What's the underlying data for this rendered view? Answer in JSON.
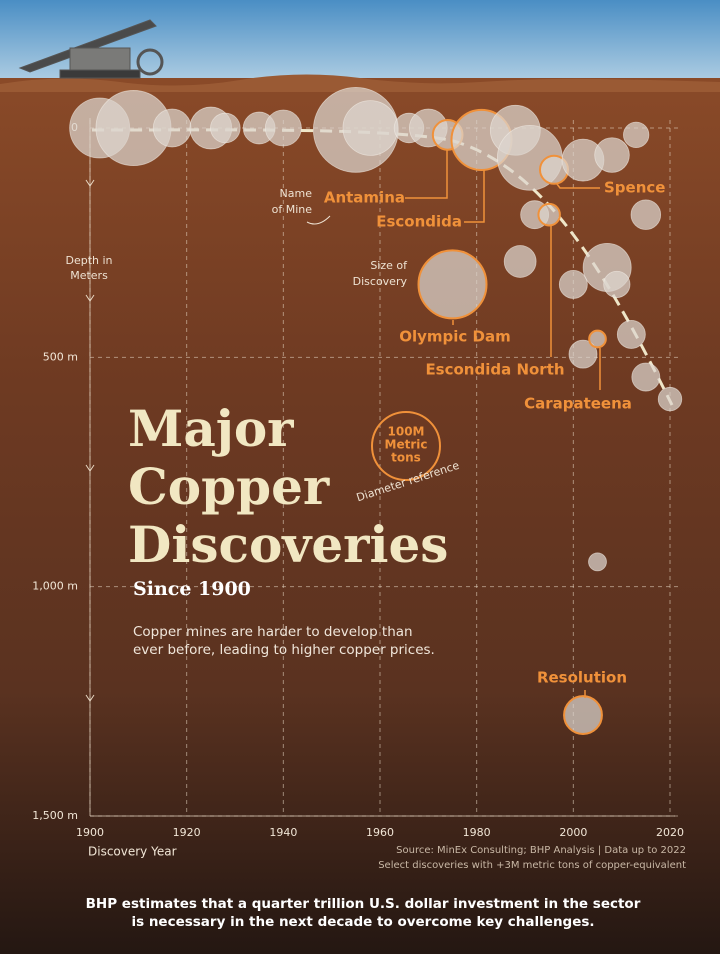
{
  "chart_data": {
    "type": "bubble",
    "title": [
      "Major",
      "Copper",
      "Discoveries"
    ],
    "subtitle": "Since 1900",
    "description": [
      "Copper mines are harder to develop than",
      "ever before, leading to higher copper prices."
    ],
    "x_label": "Discovery Year",
    "y_label": [
      "Depth in",
      "Meters"
    ],
    "annotations": {
      "name": [
        "Name",
        "of Mine"
      ],
      "size": [
        "Size of",
        "Discovery"
      ]
    },
    "reference": {
      "value": 100,
      "label": [
        "100M",
        "Metric",
        "tons"
      ],
      "caption": "Diameter reference"
    },
    "source": "Source: MinEx Consulting; BHP Analysis | Data up to 2022",
    "note": "Select discoveries with +3M metric tons of copper-equivalent",
    "footer": [
      "BHP estimates that a quarter trillion U.S. dollar investment in the sector",
      "is necessary in the next decade to overcome key challenges."
    ],
    "xlim": [
      1900,
      2020
    ],
    "ylim": [
      0,
      1500
    ],
    "xticks": [
      1900,
      1920,
      1940,
      1960,
      1980,
      2000,
      2020
    ],
    "yticks": [
      0,
      {
        "value": 500,
        "label": "500 m"
      },
      {
        "value": 1000,
        "label": "1,000 m"
      },
      {
        "value": 1500,
        "label": "1,500 m"
      }
    ],
    "grid": true,
    "color": "#dcd6cf",
    "highlight_color": "#f0913a",
    "x": [
      1902,
      1909,
      1917,
      1925,
      1928,
      1935,
      1940,
      1955,
      1958,
      1966,
      1970,
      1974,
      1981,
      1988,
      1991,
      1996,
      2002,
      2008,
      2013,
      2015,
      1992,
      1995,
      1989,
      1975,
      2000,
      2007,
      2009,
      2012,
      2002,
      2005,
      2015,
      2020,
      2005,
      2002
    ],
    "y": [
      0,
      0,
      0,
      0,
      0,
      0,
      0,
      4,
      0,
      0,
      0,
      15,
      26,
      5,
      65,
      91,
      70,
      59,
      15,
      189,
      189,
      189,
      291,
      341,
      341,
      304,
      341,
      450,
      493,
      460,
      543,
      591,
      946,
      1280
    ],
    "size": [
      78,
      122,
      31,
      38,
      19,
      22,
      28,
      156,
      65,
      19,
      31,
      19,
      78,
      54,
      91,
      17,
      38,
      26,
      14,
      19,
      17,
      10,
      22,
      100,
      17,
      50,
      15,
      17,
      17,
      6,
      17,
      12,
      7,
      31
    ],
    "labels": [
      null,
      null,
      null,
      null,
      null,
      null,
      null,
      null,
      null,
      null,
      null,
      "Antamina",
      "Escondida",
      null,
      null,
      "Spence",
      null,
      null,
      null,
      null,
      null,
      "Escondida North",
      null,
      "Olympic Dam",
      null,
      null,
      null,
      null,
      null,
      "Carapateena",
      null,
      null,
      null,
      "Resolution"
    ]
  }
}
